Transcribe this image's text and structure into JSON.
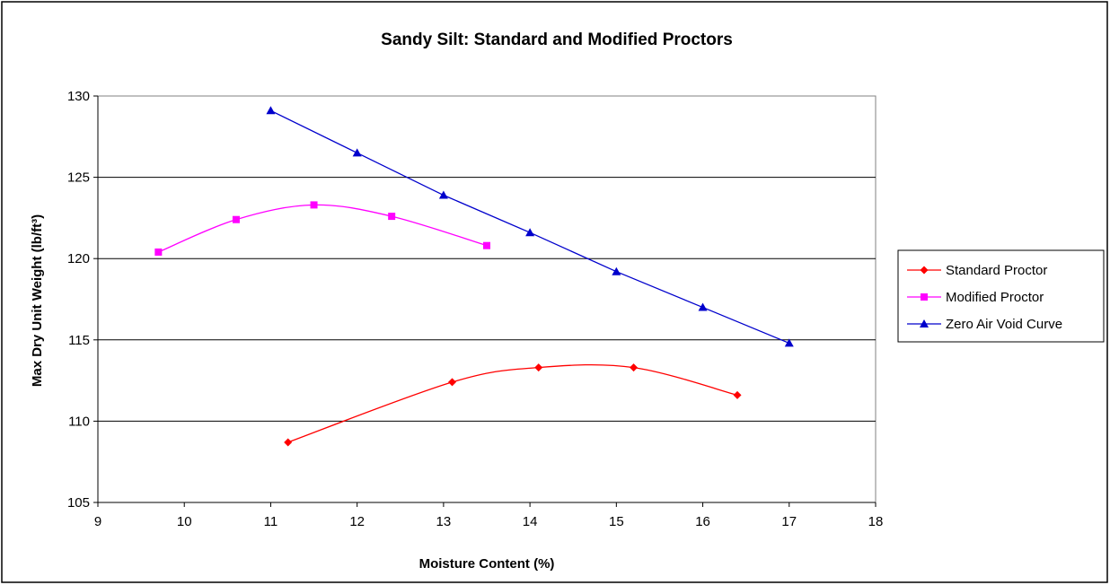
{
  "chart_data": {
    "type": "line",
    "title": "Sandy Silt: Standard and Modified Proctors",
    "xlabel": "Moisture Content (%)",
    "ylabel": "Max Dry Unit Weight (lb/ft³)",
    "xlim": [
      9,
      18
    ],
    "ylim": [
      105,
      130
    ],
    "x_ticks": [
      "9",
      "10",
      "11",
      "12",
      "13",
      "14",
      "15",
      "16",
      "17",
      "18"
    ],
    "y_ticks": [
      "105",
      "110",
      "115",
      "120",
      "125",
      "130"
    ],
    "grid": "horizontal",
    "legend_position": "right",
    "series": [
      {
        "name": "Standard Proctor",
        "color": "#ff0000",
        "marker": "diamond",
        "smooth": true,
        "points": [
          [
            11.2,
            108.7
          ],
          [
            13.1,
            112.4
          ],
          [
            14.1,
            113.3
          ],
          [
            15.2,
            113.3
          ],
          [
            16.4,
            111.6
          ]
        ]
      },
      {
        "name": "Modified Proctor",
        "color": "#ff00ff",
        "marker": "square",
        "smooth": true,
        "points": [
          [
            9.7,
            120.4
          ],
          [
            10.6,
            122.4
          ],
          [
            11.5,
            123.3
          ],
          [
            12.4,
            122.6
          ],
          [
            13.5,
            120.8
          ]
        ]
      },
      {
        "name": "Zero Air Void Curve",
        "color": "#0000cc",
        "marker": "triangle",
        "smooth": false,
        "points": [
          [
            11,
            129.1
          ],
          [
            12,
            126.5
          ],
          [
            13,
            123.9
          ],
          [
            14,
            121.6
          ],
          [
            15,
            119.2
          ],
          [
            16,
            117.0
          ],
          [
            17,
            114.8
          ]
        ]
      }
    ]
  }
}
